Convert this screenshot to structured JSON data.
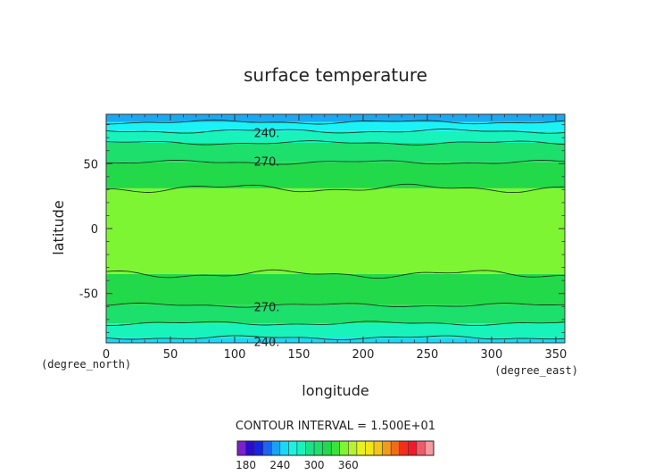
{
  "chart_data": {
    "type": "heatmap",
    "title": "surface temperature",
    "xlabel": "longitude",
    "ylabel": "latitude",
    "x_unit": "(degree_east)",
    "y_unit": "(degree_north)",
    "xlim": [
      0,
      357
    ],
    "ylim": [
      -88,
      88
    ],
    "x_ticks": [
      "0",
      "50",
      "100",
      "150",
      "200",
      "250",
      "300",
      "350"
    ],
    "y_ticks": [
      "-50",
      "0",
      "50"
    ],
    "contour_interval_text": "CONTOUR INTERVAL = 1.500E+01",
    "contour_interval": 15,
    "contour_labels": [
      {
        "text": "240.",
        "lon": 125,
        "lat": 74
      },
      {
        "text": "270.",
        "lon": 125,
        "lat": 52
      },
      {
        "text": "270.",
        "lon": 125,
        "lat": -60
      },
      {
        "text": "240.",
        "lon": 125,
        "lat": -87
      }
    ],
    "bands": [
      {
        "lat_from": -88,
        "lat_to": -84,
        "color": "#19d8f7"
      },
      {
        "lat_from": -84,
        "lat_to": -73,
        "color": "#18f3bc"
      },
      {
        "lat_from": -73,
        "lat_to": -59,
        "color": "#1ddf6b"
      },
      {
        "lat_from": -59,
        "lat_to": -35,
        "color": "#22d94a"
      },
      {
        "lat_from": -35,
        "lat_to": 31,
        "color": "#7ef533"
      },
      {
        "lat_from": 31,
        "lat_to": 51,
        "color": "#22d94a"
      },
      {
        "lat_from": 51,
        "lat_to": 66,
        "color": "#1ddf6b"
      },
      {
        "lat_from": 66,
        "lat_to": 75,
        "color": "#18f3bc"
      },
      {
        "lat_from": 75,
        "lat_to": 82,
        "color": "#19f3f6"
      },
      {
        "lat_from": 82,
        "lat_to": 88,
        "color": "#1aa8f3"
      }
    ],
    "contour_lines_lat": [
      -84,
      -73,
      -59,
      -35,
      31,
      51,
      66,
      75,
      82
    ],
    "colorbar": {
      "min": 165,
      "step": 15,
      "tick_labels": [
        "180",
        "240",
        "300",
        "360"
      ],
      "tick_values": [
        180,
        240,
        300,
        360
      ],
      "colors": [
        "#7a22c8",
        "#2a0ccf",
        "#1424e6",
        "#1a66ef",
        "#19a2f4",
        "#19d8f7",
        "#19f3e0",
        "#18f3bc",
        "#1de08a",
        "#1ddf6b",
        "#22d94a",
        "#3be23a",
        "#7ef533",
        "#b7f133",
        "#e6f21a",
        "#f2e51a",
        "#f2c61a",
        "#f29a1a",
        "#f26a1a",
        "#f2301a",
        "#f21a2a",
        "#f25a6a",
        "#f69aa0"
      ]
    }
  }
}
